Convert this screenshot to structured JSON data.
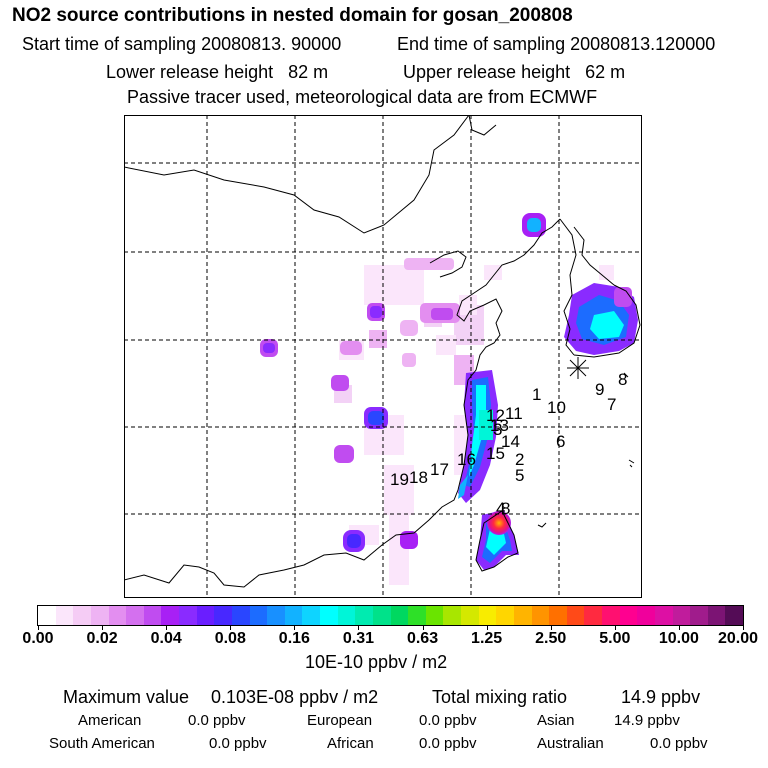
{
  "header": {
    "title": "NO2 source contributions in nested domain for gosan_200808",
    "start_sampling": "Start time of sampling 20080813. 90000",
    "end_sampling": "End time of sampling 20080813.120000",
    "lower_release": "Lower release height   82 m",
    "upper_release": "Upper release height   62 m",
    "tracer_note": "Passive tracer used, meteorological data are from ECMWF"
  },
  "map": {
    "receptor_symbol": "star",
    "source_labels": [
      "1",
      "2",
      "3",
      "4",
      "5",
      "6",
      "7",
      "8",
      "9",
      "10",
      "11",
      "12",
      "13",
      "14",
      "15",
      "16",
      "17",
      "18",
      "19"
    ]
  },
  "colorbar": {
    "swatch_colors": [
      "#ffffff",
      "#fbe6fb",
      "#f5ccf5",
      "#eeb3f3",
      "#e38ef0",
      "#d470ef",
      "#c04cf0",
      "#a820f5",
      "#8a2bff",
      "#6a1eff",
      "#4828ff",
      "#2a46ff",
      "#1c6cff",
      "#1890ff",
      "#12b2ff",
      "#0ed4ff",
      "#00ffff",
      "#00f5d8",
      "#00ebb0",
      "#00e28a",
      "#00d860",
      "#2ee028",
      "#6ae400",
      "#a8e600",
      "#d4e800",
      "#f8ec00",
      "#ffd600",
      "#ffb400",
      "#ff9400",
      "#ff7000",
      "#ff4a18",
      "#ff2a40",
      "#ff1070",
      "#ff0090",
      "#f0009c",
      "#dd10a4",
      "#c01c9c",
      "#a01c8c",
      "#7c1474",
      "#540c56"
    ],
    "tick_labels": [
      "0.00",
      "0.02",
      "0.04",
      "0.08",
      "0.16",
      "0.31",
      "0.63",
      "1.25",
      "2.50",
      "5.00",
      "10.00",
      "20.00"
    ],
    "unit_label": "10E-10 ppbv / m2"
  },
  "summary": {
    "max_label": "Maximum value",
    "max_value": "0.103E-08 ppbv / m2",
    "total_label": "Total mixing ratio",
    "total_value": "14.9 ppbv",
    "regions": [
      {
        "name": "American",
        "value": "0.0 ppbv"
      },
      {
        "name": "European",
        "value": "0.0 ppbv"
      },
      {
        "name": "Asian",
        "value": "14.9 ppbv"
      },
      {
        "name": "South American",
        "value": "0.0 ppbv"
      },
      {
        "name": "African",
        "value": "0.0 ppbv"
      },
      {
        "name": "Australian",
        "value": "0.0 ppbv"
      }
    ]
  }
}
